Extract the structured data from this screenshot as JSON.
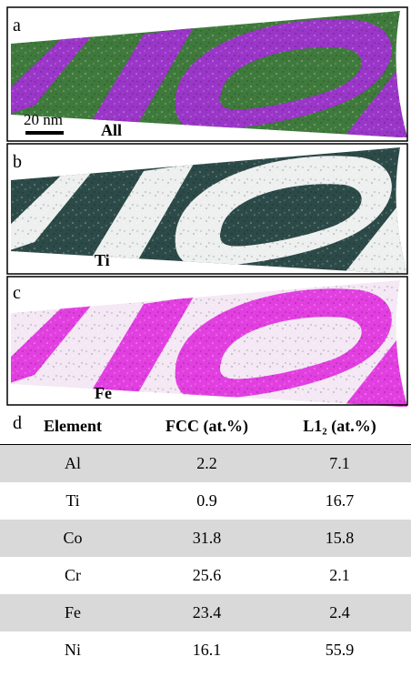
{
  "panels": [
    {
      "letter": "a",
      "label": "All",
      "scale_bar": "20 nm"
    },
    {
      "letter": "b",
      "label": "Ti"
    },
    {
      "letter": "c",
      "label": "Fe"
    }
  ],
  "table": {
    "letter": "d",
    "header": [
      "Element",
      "FCC (at.%)",
      "L1₂ (at.%)"
    ],
    "rows": [
      [
        "Al",
        2.2,
        7.1
      ],
      [
        "Ti",
        0.9,
        16.7
      ],
      [
        "Co",
        31.8,
        15.8
      ],
      [
        "Cr",
        25.6,
        2.1
      ],
      [
        "Fe",
        23.4,
        2.4
      ],
      [
        "Ni",
        16.1,
        55.9
      ]
    ]
  }
}
